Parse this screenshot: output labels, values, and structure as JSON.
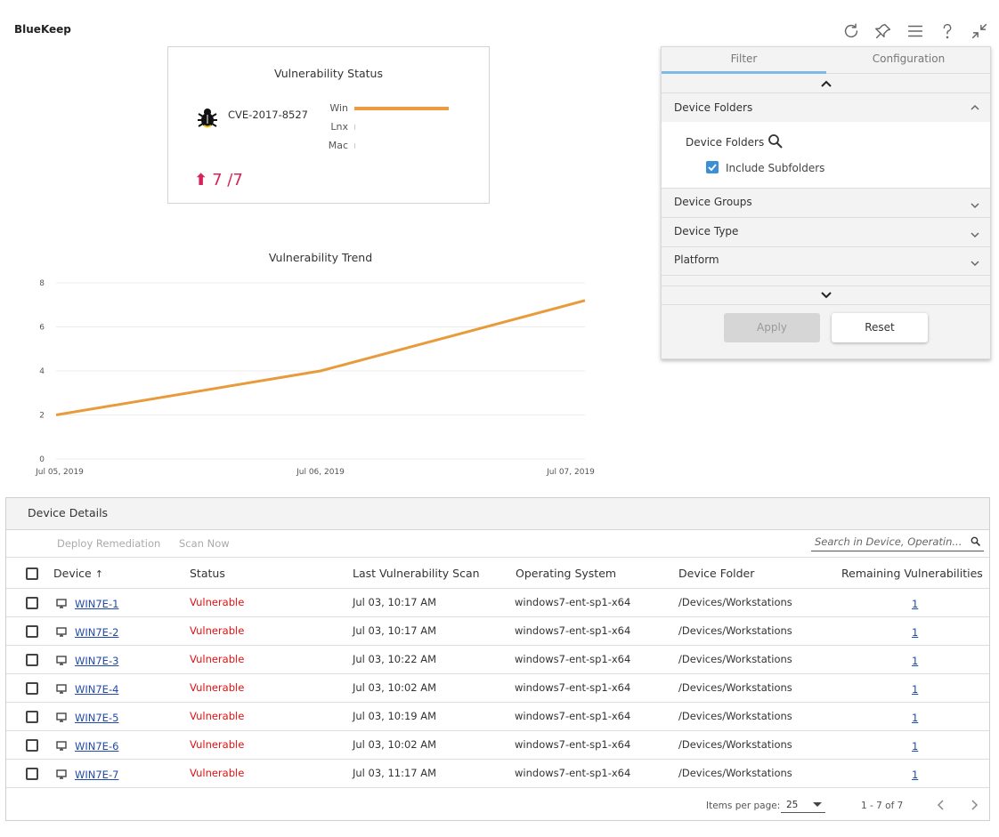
{
  "app": {
    "title": "BlueKeep"
  },
  "top_icons": [
    "refresh-icon",
    "pin-icon",
    "menu-icon",
    "help-icon",
    "collapse-icon"
  ],
  "status_card": {
    "title": "Vulnerability Status",
    "cve_id": "CVE-2017-8527",
    "platforms": [
      {
        "label": "Win",
        "fraction": 1.0
      },
      {
        "label": "Lnx",
        "fraction": 0.0
      },
      {
        "label": "Mac",
        "fraction": 0.0
      }
    ],
    "count": "7 /7",
    "bar_color": "#ed9b40",
    "count_color": "#d6245a"
  },
  "chart_data": {
    "type": "line",
    "title": "Vulnerability Trend",
    "x": [
      "Jul 05, 2019",
      "Jul 06, 2019",
      "Jul 07, 2019"
    ],
    "series": [
      {
        "values": [
          2,
          4,
          7.2
        ],
        "color": "#e89b3c"
      }
    ],
    "ylim": [
      0,
      8
    ],
    "yticks": [
      0,
      2,
      4,
      6,
      8
    ],
    "grid": true
  },
  "filter": {
    "tabs": [
      {
        "label": "Filter",
        "active": true
      },
      {
        "label": "Configuration",
        "active": false
      }
    ],
    "sections": {
      "device_folders": "Device Folders",
      "device_groups": "Device Groups",
      "device_type": "Device Type",
      "platform": "Platform"
    },
    "folders_field_label": "Device Folders",
    "include_subfolders": {
      "label": "Include Subfolders",
      "checked": true
    },
    "apply_label": "Apply",
    "reset_label": "Reset"
  },
  "details": {
    "title": "Device Details",
    "actions": {
      "deploy": "Deploy Remediation",
      "scan": "Scan Now"
    },
    "search_placeholder": "Search in Device, Operatin...",
    "columns": {
      "device": "Device",
      "sort_arrow": "↑",
      "status": "Status",
      "last_scan": "Last Vulnerability Scan",
      "os": "Operating System",
      "folder": "Device Folder",
      "remaining": "Remaining Vulnerabilities"
    },
    "rows": [
      {
        "device": "WIN7E-1",
        "status": "Vulnerable",
        "last_scan": "Jul 03, 10:17 AM",
        "os": "windows7-ent-sp1-x64",
        "folder": "/Devices/Workstations",
        "remaining": "1"
      },
      {
        "device": "WIN7E-2",
        "status": "Vulnerable",
        "last_scan": "Jul 03, 10:17 AM",
        "os": "windows7-ent-sp1-x64",
        "folder": "/Devices/Workstations",
        "remaining": "1"
      },
      {
        "device": "WIN7E-3",
        "status": "Vulnerable",
        "last_scan": "Jul 03, 10:22 AM",
        "os": "windows7-ent-sp1-x64",
        "folder": "/Devices/Workstations",
        "remaining": "1"
      },
      {
        "device": "WIN7E-4",
        "status": "Vulnerable",
        "last_scan": "Jul 03, 10:02 AM",
        "os": "windows7-ent-sp1-x64",
        "folder": "/Devices/Workstations",
        "remaining": "1"
      },
      {
        "device": "WIN7E-5",
        "status": "Vulnerable",
        "last_scan": "Jul 03, 10:19 AM",
        "os": "windows7-ent-sp1-x64",
        "folder": "/Devices/Workstations",
        "remaining": "1"
      },
      {
        "device": "WIN7E-6",
        "status": "Vulnerable",
        "last_scan": "Jul 03, 10:02 AM",
        "os": "windows7-ent-sp1-x64",
        "folder": "/Devices/Workstations",
        "remaining": "1"
      },
      {
        "device": "WIN7E-7",
        "status": "Vulnerable",
        "last_scan": "Jul 03, 11:17 AM",
        "os": "windows7-ent-sp1-x64",
        "folder": "/Devices/Workstations",
        "remaining": "1"
      }
    ],
    "footer": {
      "items_per_page_label": "Items per page:",
      "items_per_page": "25",
      "range": "1 - 7 of 7"
    }
  }
}
